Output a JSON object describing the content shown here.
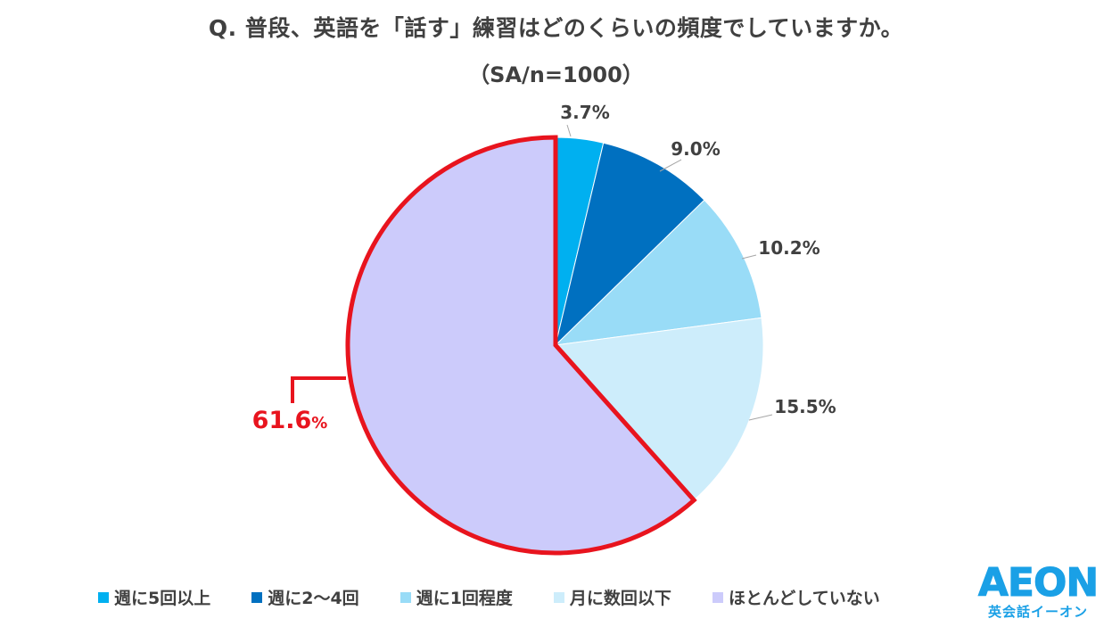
{
  "title": "Q. 普段、英語を「話す」練習はどのくらいの頻度でしていますか。",
  "subtitle": "（SA/n=1000）",
  "chart_data": {
    "type": "pie",
    "categories": [
      "週に5回以上",
      "週に2〜4回",
      "週に1回程度",
      "月に数回以下",
      "ほとんどしていない"
    ],
    "values": [
      3.7,
      9.0,
      10.2,
      15.5,
      61.6
    ],
    "labels": [
      "3.7%",
      "9.0%",
      "10.2%",
      "15.5%",
      "61.6%"
    ],
    "colors": [
      "#00b0f0",
      "#0070c0",
      "#99dcf7",
      "#cdedfb",
      "#cccbfb"
    ],
    "highlight": {
      "index": 4,
      "color": "#e8141e"
    },
    "legend_position": "bottom"
  },
  "logo": {
    "main": "AEON",
    "sub": "英会話イーオン"
  }
}
